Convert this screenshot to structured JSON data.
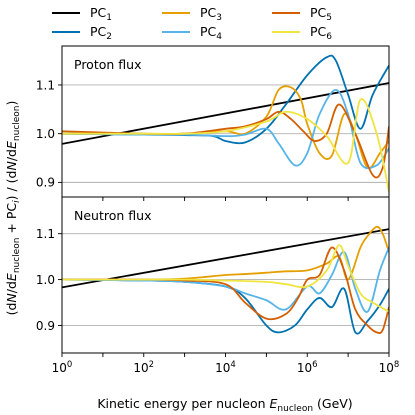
{
  "chart_data": {
    "type": "line",
    "x_scale": "log",
    "xlabel": "Kinetic energy per nucleon E_nucleon (GeV)",
    "xlabel_parts": {
      "prefix": "Kinetic energy per nucleon ",
      "var": "E",
      "sub": "nucleon",
      "suffix": " (GeV)"
    },
    "ylabel": "(dN/dE_nucleon + PC_i) / (dN/dE_nucleon)",
    "ylabel_parts": {
      "p1": "(d",
      "N": "N",
      "p2": "/d",
      "E": "E",
      "sub": "nucleon",
      "p3": " + PC",
      "sub_i": "i",
      "p4": ") / (d",
      "p5": "/d",
      "p6": ")"
    },
    "xlim": [
      1,
      100000000
    ],
    "x_ticks": [
      {
        "v": 1,
        "base": "10",
        "exp": "0"
      },
      {
        "v": 100,
        "base": "10",
        "exp": "2"
      },
      {
        "v": 10000,
        "base": "10",
        "exp": "4"
      },
      {
        "v": 1000000,
        "base": "10",
        "exp": "6"
      },
      {
        "v": 100000000,
        "base": "10",
        "exp": "8"
      }
    ],
    "grid": "horizontal",
    "legend": {
      "placement": "top",
      "entries": [
        {
          "base": "PC",
          "sub": "1",
          "color": "#000000"
        },
        {
          "base": "PC",
          "sub": "2",
          "color": "#0072b2"
        },
        {
          "base": "PC",
          "sub": "3",
          "color": "#e69f00"
        },
        {
          "base": "PC",
          "sub": "4",
          "color": "#56b4e9"
        },
        {
          "base": "PC",
          "sub": "5",
          "color": "#d55e00"
        },
        {
          "base": "PC",
          "sub": "6",
          "color": "#f0e442"
        }
      ]
    },
    "panels": [
      {
        "title": "Proton flux",
        "ylim": [
          0.87,
          1.18
        ],
        "y_ticks": [
          "0.9",
          "1.0",
          "1.1"
        ],
        "series": [
          {
            "name": "PC1",
            "color": "#000000",
            "x": [
              1,
              100000000
            ],
            "y": [
              0.979,
              1.104
            ]
          },
          {
            "name": "PC2",
            "color": "#0072b2",
            "x": [
              1,
              100,
              1000,
              5000,
              10000,
              30000,
              100000,
              300000,
              1000000,
              3000000,
              5000000,
              10000000,
              20000000,
              40000000,
              100000000
            ],
            "y": [
              1.0,
              0.998,
              0.997,
              0.995,
              0.985,
              0.982,
              1.01,
              1.06,
              1.12,
              1.157,
              1.15,
              1.08,
              1.01,
              1.08,
              1.14
            ]
          },
          {
            "name": "PC3",
            "color": "#e69f00",
            "x": [
              1,
              100,
              1000,
              10000,
              30000,
              100000,
              200000,
              400000,
              700000,
              1000000,
              2000000,
              4000000,
              8000000,
              15000000,
              30000000,
              60000000,
              100000000
            ],
            "y": [
              1.0,
              0.999,
              1.0,
              1.005,
              1.0,
              1.035,
              1.09,
              1.095,
              1.07,
              1.02,
              0.96,
              0.955,
              1.04,
              1.0,
              0.93,
              0.96,
              0.985
            ]
          },
          {
            "name": "PC4",
            "color": "#56b4e9",
            "x": [
              1,
              100,
              1000,
              10000,
              30000,
              100000,
              200000,
              500000,
              1000000,
              2000000,
              5000000,
              10000000,
              20000000,
              50000000,
              100000000
            ],
            "y": [
              1.0,
              0.998,
              0.998,
              0.995,
              0.998,
              1.01,
              0.98,
              0.935,
              0.96,
              1.04,
              1.09,
              1.04,
              0.94,
              0.935,
              0.97
            ]
          },
          {
            "name": "PC5",
            "color": "#d55e00",
            "x": [
              1,
              100,
              1000,
              10000,
              30000,
              100000,
              200000,
              400000,
              800000,
              1500000,
              3000000,
              6000000,
              15000000,
              40000000,
              70000000,
              100000000
            ],
            "y": [
              1.005,
              1.0,
              1.0,
              1.01,
              1.015,
              1.03,
              1.045,
              1.03,
              1.005,
              0.985,
              1.0,
              1.06,
              1.0,
              0.915,
              0.93,
              1.015
            ]
          },
          {
            "name": "PC6",
            "color": "#f0e442",
            "x": [
              1,
              100,
              1000,
              10000,
              100000,
              300000,
              1000000,
              3000000,
              10000000,
              20000000,
              50000000,
              100000000
            ],
            "y": [
              1.0,
              1.0,
              1.0,
              1.005,
              1.025,
              1.045,
              1.03,
              0.995,
              0.94,
              1.07,
              1.0,
              0.88
            ]
          }
        ]
      },
      {
        "title": "Neutron flux",
        "ylim": [
          0.84,
          1.18
        ],
        "y_ticks": [
          "0.9",
          "1.0",
          "1.1"
        ],
        "series": [
          {
            "name": "PC1",
            "color": "#000000",
            "x": [
              1,
              100000000
            ],
            "y": [
              0.983,
              1.11
            ]
          },
          {
            "name": "PC2",
            "color": "#0072b2",
            "x": [
              1,
              100,
              1000,
              10000,
              30000,
              100000,
              200000,
              500000,
              1000000,
              2000000,
              4000000,
              8000000,
              15000000,
              30000000,
              60000000,
              100000000
            ],
            "y": [
              1.0,
              0.998,
              0.995,
              0.985,
              0.96,
              0.9,
              0.885,
              0.9,
              0.935,
              0.96,
              0.94,
              0.98,
              0.885,
              0.91,
              0.945,
              0.98
            ]
          },
          {
            "name": "PC3",
            "color": "#e69f00",
            "x": [
              1,
              100,
              1000,
              10000,
              30000,
              100000,
              300000,
              1000000,
              3000000,
              6000000,
              10000000,
              20000000,
              30000000,
              50000000,
              70000000,
              100000000
            ],
            "y": [
              1.0,
              1.0,
              1.002,
              1.01,
              1.012,
              1.015,
              1.018,
              1.02,
              1.035,
              1.05,
              1.0,
              1.07,
              1.095,
              1.115,
              1.1,
              1.06
            ]
          },
          {
            "name": "PC4",
            "color": "#56b4e9",
            "x": [
              1,
              100,
              1000,
              10000,
              30000,
              100000,
              300000,
              1000000,
              2000000,
              4000000,
              8000000,
              15000000,
              30000000,
              60000000,
              100000000
            ],
            "y": [
              1.0,
              0.998,
              0.995,
              0.985,
              0.97,
              0.955,
              0.935,
              0.985,
              0.97,
              1.01,
              1.06,
              0.98,
              0.93,
              1.02,
              1.07
            ]
          },
          {
            "name": "PC5",
            "color": "#d55e00",
            "x": [
              1,
              100,
              1000,
              10000,
              30000,
              100000,
              300000,
              600000,
              1000000,
              2000000,
              4000000,
              8000000,
              15000000,
              30000000,
              50000000,
              70000000,
              100000000
            ],
            "y": [
              1.0,
              1.0,
              0.998,
              0.99,
              0.95,
              0.915,
              0.925,
              0.96,
              1.0,
              1.01,
              1.07,
              1.02,
              0.935,
              0.9,
              0.885,
              0.89,
              0.94
            ]
          },
          {
            "name": "PC6",
            "color": "#f0e442",
            "x": [
              1,
              100,
              1000,
              10000,
              100000,
              300000,
              1000000,
              3000000,
              6000000,
              10000000,
              20000000,
              40000000,
              100000000
            ],
            "y": [
              1.0,
              1.0,
              1.0,
              0.998,
              0.995,
              0.99,
              0.985,
              1.02,
              1.075,
              1.03,
              0.97,
              0.95,
              0.93
            ]
          }
        ]
      }
    ]
  }
}
